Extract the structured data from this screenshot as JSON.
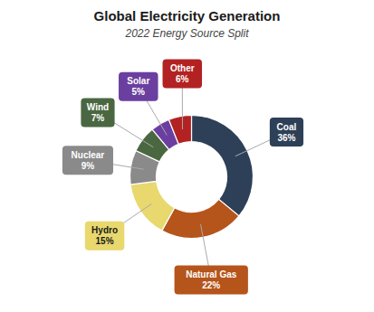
{
  "chart_data": {
    "type": "pie",
    "title": "Global Electricity Generation",
    "subtitle": "2022 Energy Source Split",
    "categories": [
      "Coal",
      "Natural Gas",
      "Hydro",
      "Nuclear",
      "Wind",
      "Solar",
      "Other"
    ],
    "values": [
      36,
      22,
      15,
      9,
      7,
      5,
      6
    ],
    "value_labels": [
      "36%",
      "22%",
      "15%",
      "9%",
      "7%",
      "5%",
      "6%"
    ],
    "colors": [
      "#2e4057",
      "#b5541b",
      "#e8d86e",
      "#8a8a8a",
      "#4a6741",
      "#6b3fa0",
      "#b22222"
    ],
    "data_labels": true
  }
}
